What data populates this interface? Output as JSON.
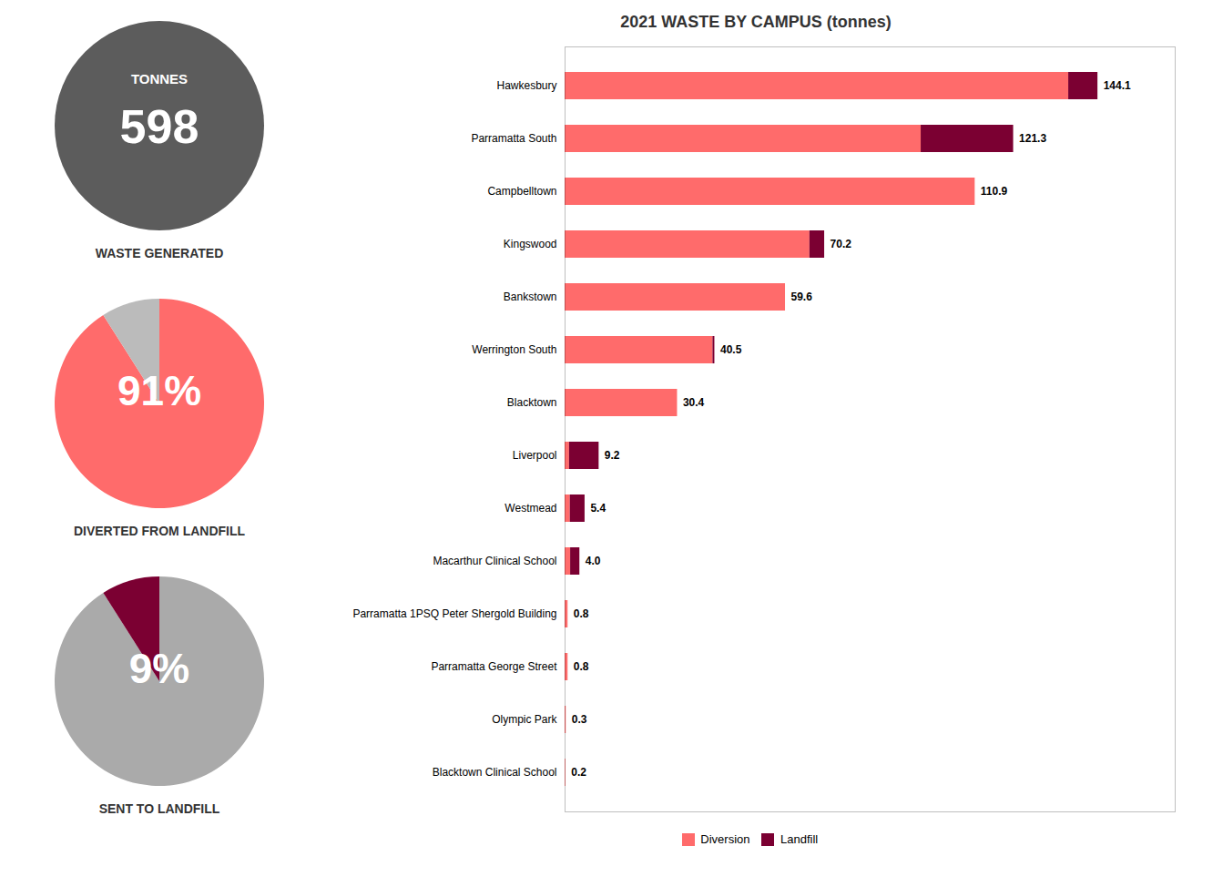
{
  "chart_data": [
    {
      "type": "bar",
      "title": "2021 WASTE BY CAMPUS (tonnes)",
      "orientation": "horizontal",
      "stacked": true,
      "categories": [
        "Hawkesbury",
        "Parramatta South",
        "Campbelltown",
        "Kingswood",
        "Bankstown",
        "Werrington South",
        "Blacktown",
        "Liverpool",
        "Westmead",
        "Macarthur Clinical School",
        "Parramatta 1PSQ Peter Shergold Building",
        "Parramatta George Street",
        "Olympic Park",
        "Blacktown Clinical School"
      ],
      "series": [
        {
          "name": "Diversion",
          "color": "#FF6B6B",
          "values": [
            136.2,
            96.3,
            110.9,
            66.2,
            59.6,
            40.0,
            30.4,
            1.2,
            1.4,
            1.5,
            0.8,
            0.8,
            0.3,
            0.2
          ]
        },
        {
          "name": "Landfill",
          "color": "#7B0032",
          "values": [
            7.9,
            25.0,
            0.0,
            4.0,
            0.0,
            0.5,
            0.0,
            8.0,
            4.0,
            2.5,
            0.0,
            0.0,
            0.0,
            0.0
          ]
        }
      ],
      "totals": [
        144.1,
        121.3,
        110.9,
        70.2,
        59.6,
        40.5,
        30.4,
        9.2,
        5.4,
        4.0,
        0.8,
        0.8,
        0.3,
        0.2
      ],
      "total_labels": [
        "144.1",
        "121.3",
        "110.9",
        "70.2",
        "59.6",
        "40.5",
        "30.4",
        "9.2",
        "5.4",
        "4.0",
        "0.8",
        "0.8",
        "0.3",
        "0.2"
      ],
      "xlim": [
        0,
        165
      ],
      "tick_labels": "y",
      "grid": false,
      "legend": "bottom"
    },
    {
      "type": "stat",
      "title": "WASTE GENERATED",
      "subtitle": "TONNES",
      "values": [
        598
      ],
      "value_labels": [
        "598"
      ],
      "color": "#5C5C5C"
    },
    {
      "type": "pie",
      "title": "DIVERTED FROM LANDFILL",
      "categories": [
        null,
        null
      ],
      "values": [
        91,
        9
      ],
      "value_labels": [
        "91%",
        null
      ],
      "colors": [
        "#FF6B6B",
        "#BBBBBB"
      ]
    },
    {
      "type": "pie",
      "title": "SENT TO LANDFILL",
      "categories": [
        null,
        null
      ],
      "values": [
        91,
        9
      ],
      "value_labels": [
        null,
        "9%"
      ],
      "colors": [
        "#AAAAAA",
        "#7B0032"
      ]
    }
  ]
}
